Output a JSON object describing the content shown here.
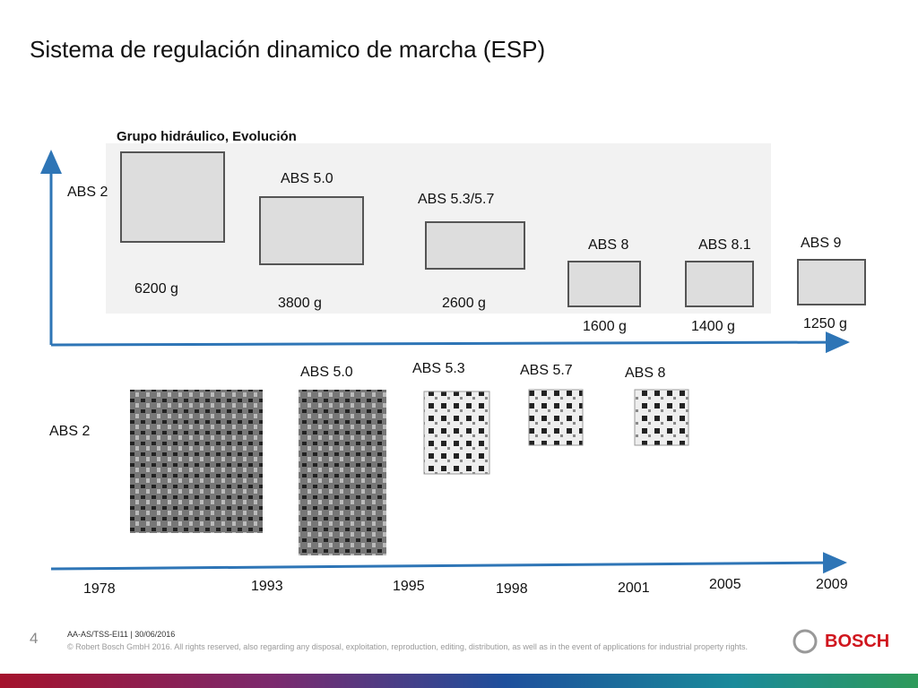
{
  "header": {
    "title": "Sistema de regulación dinamico de marcha (ESP)"
  },
  "hydraulic": {
    "title": "Grupo hidráulico, Evolución",
    "units": [
      {
        "label": "ABS 2",
        "weight": "6200 g"
      },
      {
        "label": "ABS 5.0",
        "weight": "3800 g"
      },
      {
        "label": "ABS 5.3/5.7",
        "weight": "2600 g"
      },
      {
        "label": "ABS 8",
        "weight": "1600 g"
      },
      {
        "label": "ABS 8.1",
        "weight": "1400 g"
      },
      {
        "label": "ABS 9",
        "weight": "1250 g"
      }
    ]
  },
  "ecu": {
    "units": [
      "ABS 2",
      "ABS 5.0",
      "ABS 5.3",
      "ABS 5.7",
      "ABS 8"
    ]
  },
  "timeline": {
    "years": [
      "1978",
      "1993",
      "1995",
      "1998",
      "2001",
      "2005",
      "2009"
    ]
  },
  "footer": {
    "page": "4",
    "ref": "AA-AS/TSS-EI11 | 30/06/2016",
    "copyright": "© Robert Bosch GmbH 2016. All rights reserved, also regarding any disposal, exploitation, reproduction, editing, distribution, as well as in the event of applications for industrial property rights.",
    "brand": "BOSCH"
  }
}
